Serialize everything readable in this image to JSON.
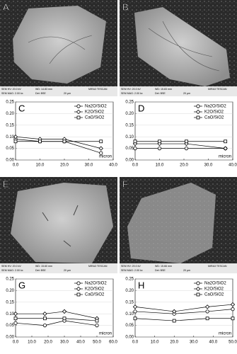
{
  "images": [
    {
      "label": "A",
      "footer": [
        "SEM HV: 20.0 kV",
        "WD: 14.83 mm",
        "MIRA3 TESCAN",
        "SEM MAG: 2.00 kx",
        "Det: BSE",
        "20 µm"
      ]
    },
    {
      "label": "B",
      "footer": [
        "SEM HV: 20.0 kV",
        "WD: 15.83 mm",
        "MIRA3 TESCAN",
        "SEM MAG: 2.00 kx",
        "Det: BSE",
        "20 µm"
      ]
    },
    {
      "label": "E",
      "footer": [
        "SEM HV: 20.0 kV",
        "WD: 15.60 mm",
        "MIRA3 TESCAN",
        "SEM MAG: 2.00 kx",
        "Det: BSE",
        "20 µm"
      ]
    },
    {
      "label": "F",
      "footer": [
        "SEM HV: 20.0 kV",
        "WD: 15.66 mm",
        "MIRA3 TESCAN",
        "SEM MAG: 2.00 kx",
        "Det: BSE",
        "20 µm"
      ]
    }
  ],
  "chart_data": [
    {
      "type": "line",
      "label": "C",
      "xlabel": "micron",
      "legend": "upper right",
      "x": [
        0,
        10,
        20,
        35
      ],
      "series": [
        {
          "name": "Na2O/SiO2",
          "color": "#000000",
          "marker": "circle",
          "values": [
            0.09,
            0.08,
            0.08,
            0.03
          ]
        },
        {
          "name": "K2O/SiO2",
          "color": "#000000",
          "marker": "diamond",
          "values": [
            0.1,
            0.09,
            0.09,
            0.05
          ]
        },
        {
          "name": "CaO/SiO2",
          "color": "#000000",
          "marker": "square",
          "values": [
            0.08,
            0.08,
            0.08,
            0.08
          ]
        }
      ],
      "xlim": [
        0,
        40
      ],
      "ylim": [
        0,
        0.25
      ],
      "xticks": [
        {
          "value": 0,
          "label": "0.0"
        },
        {
          "value": 10,
          "label": "10.0"
        },
        {
          "value": 20,
          "label": "20.0"
        },
        {
          "value": 30,
          "label": "30.0"
        },
        {
          "value": 40,
          "label": "40.0"
        }
      ],
      "yticks": [
        {
          "value": 0,
          "label": "0.00"
        },
        {
          "value": 0.05,
          "label": "0.05"
        },
        {
          "value": 0.1,
          "label": "0.10"
        },
        {
          "value": 0.15,
          "label": "0.15"
        },
        {
          "value": 0.2,
          "label": "0.20"
        },
        {
          "value": 0.25,
          "label": "0.25"
        }
      ]
    },
    {
      "type": "line",
      "label": "D",
      "xlabel": "micron",
      "legend": "upper right",
      "x": [
        0,
        10,
        21,
        37
      ],
      "series": [
        {
          "name": "Na2O/SiO2",
          "color": "#000000",
          "marker": "circle",
          "values": [
            0.05,
            0.05,
            0.05,
            0.05
          ]
        },
        {
          "name": "K2O/SiO2",
          "color": "#000000",
          "marker": "diamond",
          "values": [
            0.07,
            0.07,
            0.07,
            0.05
          ]
        },
        {
          "name": "CaO/SiO2",
          "color": "#000000",
          "marker": "square",
          "values": [
            0.08,
            0.08,
            0.08,
            0.08
          ]
        }
      ],
      "xlim": [
        0,
        40
      ],
      "ylim": [
        0,
        0.25
      ],
      "xticks": [
        {
          "value": 0,
          "label": "0.0"
        },
        {
          "value": 10,
          "label": "10.0"
        },
        {
          "value": 20,
          "label": "20.0"
        },
        {
          "value": 30,
          "label": "30.0"
        },
        {
          "value": 40,
          "label": "40.0"
        }
      ],
      "yticks": [
        {
          "value": 0,
          "label": "0.00"
        },
        {
          "value": 0.05,
          "label": "0.05"
        },
        {
          "value": 0.1,
          "label": "0.10"
        },
        {
          "value": 0.15,
          "label": "0.15"
        },
        {
          "value": 0.2,
          "label": "0.20"
        },
        {
          "value": 0.25,
          "label": "0.25"
        }
      ]
    },
    {
      "type": "line",
      "label": "G",
      "xlabel": "micron",
      "legend": "upper right",
      "x": [
        0,
        18,
        30,
        50
      ],
      "series": [
        {
          "name": "Na2O/SiO2",
          "color": "#000000",
          "marker": "circle",
          "values": [
            0.06,
            0.05,
            0.07,
            0.05
          ]
        },
        {
          "name": "K2O/SiO2",
          "color": "#000000",
          "marker": "diamond",
          "values": [
            0.1,
            0.1,
            0.11,
            0.08
          ]
        },
        {
          "name": "CaO/SiO2",
          "color": "#000000",
          "marker": "square",
          "values": [
            0.08,
            0.08,
            0.08,
            0.07
          ]
        }
      ],
      "xlim": [
        0,
        60
      ],
      "ylim": [
        0,
        0.25
      ],
      "xticks": [
        {
          "value": 0,
          "label": "0.0"
        },
        {
          "value": 10,
          "label": "10.0"
        },
        {
          "value": 20,
          "label": "20.0"
        },
        {
          "value": 30,
          "label": "30.0"
        },
        {
          "value": 40,
          "label": "40.0"
        },
        {
          "value": 50,
          "label": "50.0"
        },
        {
          "value": 60,
          "label": "60.0"
        }
      ],
      "yticks": [
        {
          "value": 0,
          "label": "0.00"
        },
        {
          "value": 0.05,
          "label": "0.05"
        },
        {
          "value": 0.1,
          "label": "0.10"
        },
        {
          "value": 0.15,
          "label": "0.15"
        },
        {
          "value": 0.2,
          "label": "0.20"
        },
        {
          "value": 0.25,
          "label": "0.25"
        }
      ]
    },
    {
      "type": "line",
      "label": "H",
      "xlabel": "micron",
      "legend": "upper right",
      "x": [
        0,
        20,
        37,
        50
      ],
      "series": [
        {
          "name": "Na2O/SiO2",
          "color": "#000000",
          "marker": "circle",
          "values": [
            0.11,
            0.1,
            0.11,
            0.12
          ]
        },
        {
          "name": "K2O/SiO2",
          "color": "#000000",
          "marker": "diamond",
          "values": [
            0.13,
            0.11,
            0.13,
            0.14
          ]
        },
        {
          "name": "CaO/SiO2",
          "color": "#000000",
          "marker": "square",
          "values": [
            0.08,
            0.07,
            0.08,
            0.08
          ]
        }
      ],
      "xlim": [
        0,
        50
      ],
      "ylim": [
        0,
        0.25
      ],
      "xticks": [
        {
          "value": 0,
          "label": "0.0"
        },
        {
          "value": 10,
          "label": "10.0"
        },
        {
          "value": 20,
          "label": "20.0"
        },
        {
          "value": 30,
          "label": "30.0"
        },
        {
          "value": 40,
          "label": "40.0"
        },
        {
          "value": 50,
          "label": "50.0"
        }
      ],
      "yticks": [
        {
          "value": 0,
          "label": "0.00"
        },
        {
          "value": 0.05,
          "label": "0.05"
        },
        {
          "value": 0.1,
          "label": "0.10"
        },
        {
          "value": 0.15,
          "label": "0.15"
        },
        {
          "value": 0.2,
          "label": "0.20"
        },
        {
          "value": 0.25,
          "label": "0.25"
        }
      ]
    }
  ]
}
